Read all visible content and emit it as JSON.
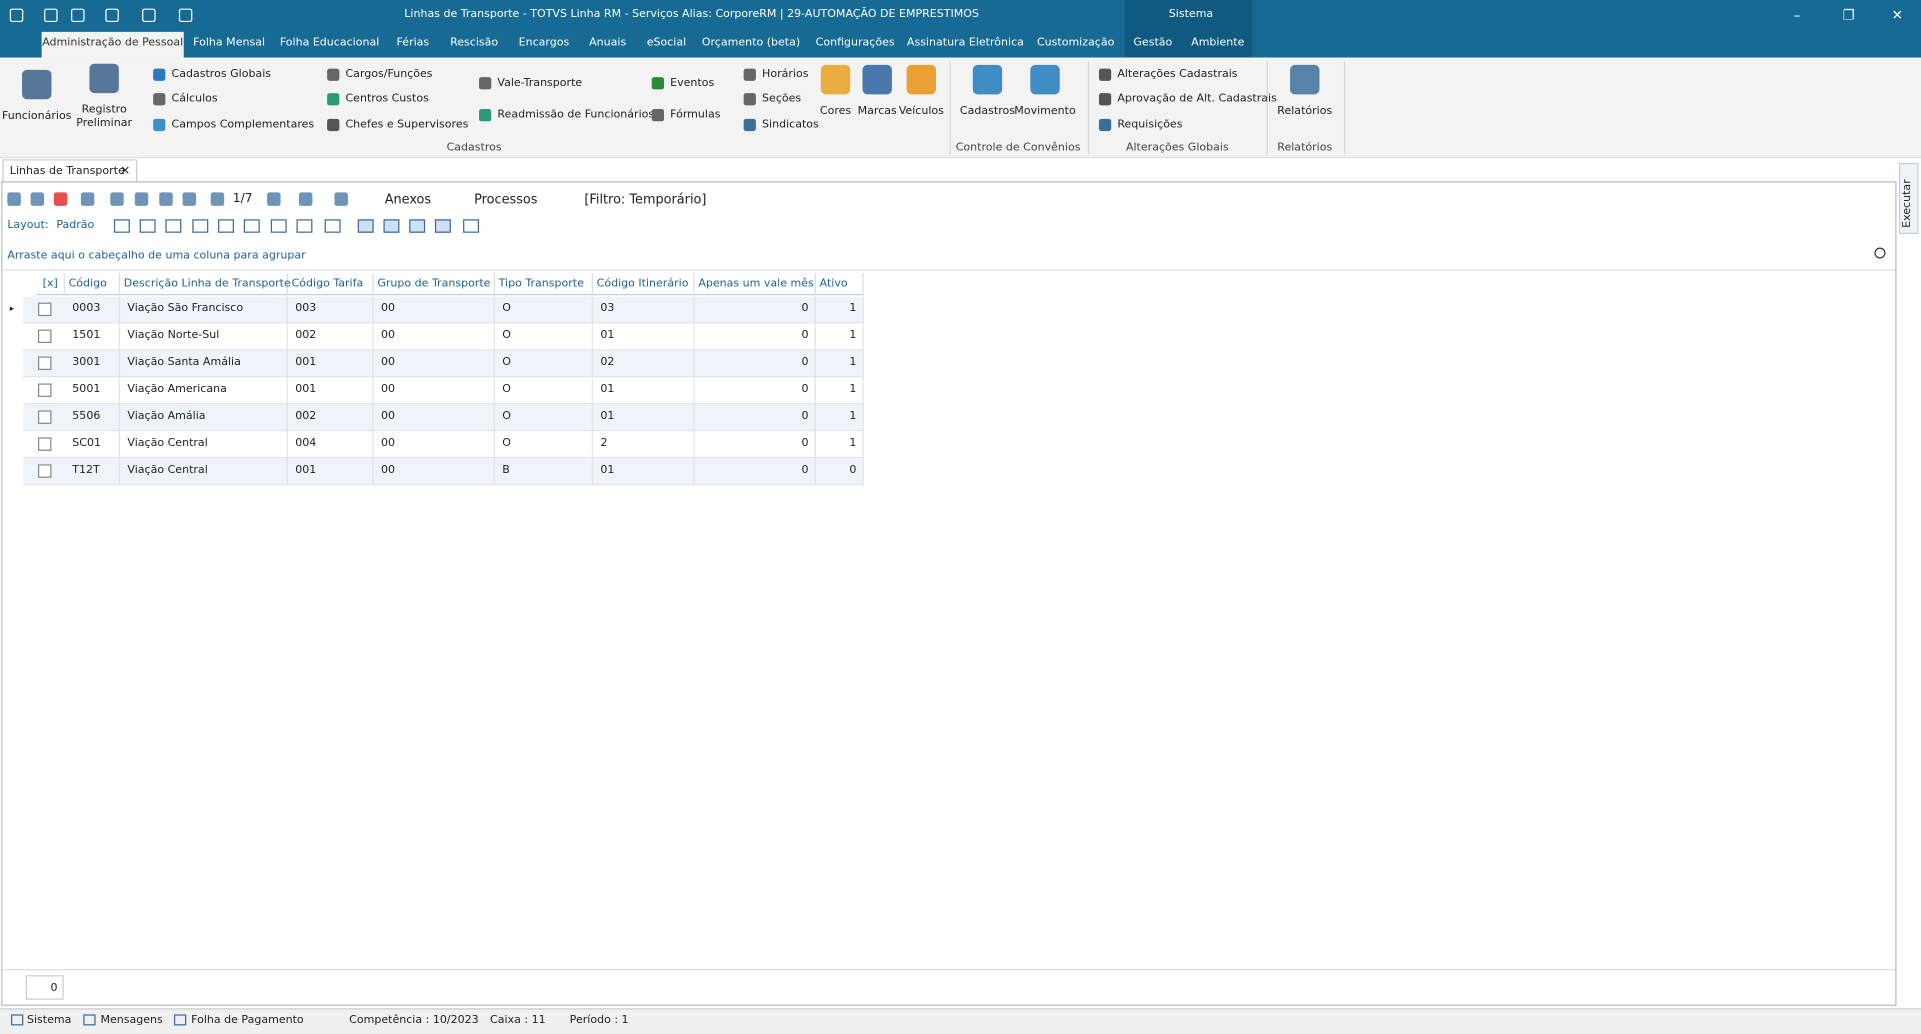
{
  "window": {
    "title": "Linhas de Transporte - TOTVS Linha RM - Serviços  Alias: CorporeRM | 29-AUTOMAÇÃO DE EMPRESTIMOS",
    "system": "Sistema"
  },
  "menu": [
    "Administração de Pessoal",
    "Folha Mensal",
    "Folha Educacional",
    "Férias",
    "Rescisão",
    "Encargos",
    "Anuais",
    "eSocial",
    "Orçamento (beta)",
    "Configurações",
    "Assinatura Eletrônica",
    "Customização",
    "Gestão",
    "Ambiente"
  ],
  "ribbon": {
    "items": [
      "Funcionários",
      "Registro Preliminar",
      "Cadastros Globais",
      "Cálculos",
      "Campos Complementares",
      "Cargos/Funções",
      "Centros Custos",
      "Chefes e Supervisores",
      "Vale-Transporte",
      "Readmissão de Funcionários",
      "Eventos",
      "Fórmulas",
      "Horários",
      "Seções",
      "Sindicatos",
      "Cores",
      "Marcas",
      "Veículos",
      "Cadastros",
      "Movimento",
      "Alterações Cadastrais",
      "Aprovação de Alt. Cadastrais",
      "Requisições",
      "Relatórios"
    ],
    "groups": [
      "Cadastros",
      "Controle de Convênios",
      "Alterações Globais",
      "Relatórios"
    ]
  },
  "document_tab": "Linhas de Transporte",
  "side_tab": "Executar",
  "toolbar": {
    "page": "1/7",
    "attachments": "Anexos",
    "processes": "Processos",
    "filter": "[Filtro: Temporário]",
    "layout_label": "Layout:",
    "layout": "Padrão"
  },
  "group_hint": "Arraste aqui o cabeçalho de uma coluna para agrupar",
  "table": {
    "columns": [
      "[x]",
      "Código",
      "Descrição Linha de Transporte",
      "Código Tarifa",
      "Grupo de Transporte",
      "Tipo Transporte",
      "Código Itinerário",
      "Apenas um vale mês",
      "Ativo"
    ],
    "rows": [
      [
        "0003",
        "Viação São Francisco",
        "003",
        "00",
        "O",
        "03",
        0,
        1
      ],
      [
        "1501",
        "Viação Norte-Sul",
        "002",
        "00",
        "O",
        "01",
        0,
        1
      ],
      [
        "3001",
        "Viação Santa Amália",
        "001",
        "00",
        "O",
        "02",
        0,
        1
      ],
      [
        "5001",
        "Viação Americana",
        "001",
        "00",
        "O",
        "01",
        0,
        1
      ],
      [
        "5506",
        "Viação Amália",
        "002",
        "00",
        "O",
        "01",
        0,
        1
      ],
      [
        "SC01",
        "Viação Central",
        "004",
        "00",
        "O",
        "2",
        0,
        1
      ],
      [
        "T12T",
        "Viação Central",
        "001",
        "00",
        "B",
        "01",
        0,
        0
      ]
    ]
  },
  "footer_count": "0",
  "status": [
    "Sistema",
    "Mensagens",
    "Folha de Pagamento",
    "Competência : 10/2023",
    "Caixa : 11",
    "Período : 1"
  ]
}
